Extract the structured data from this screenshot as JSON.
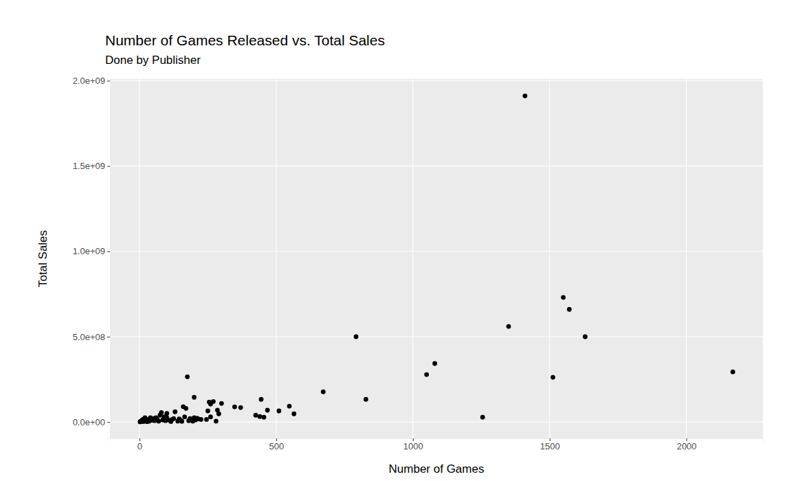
{
  "chart_data": {
    "type": "scatter",
    "title": "Number of Games Released vs. Total Sales",
    "subtitle": "Done by Publisher",
    "x_label": "Number of Games",
    "y_label": "Total Sales",
    "color": "#000000",
    "marker": "circle",
    "grid": true,
    "xlim": [
      -108,
      2280
    ],
    "ylim": [
      -96000000,
      2010000000
    ],
    "xticks": [
      0,
      500,
      1000,
      1500,
      2000
    ],
    "yticks": [
      {
        "value": 0,
        "label": "0.0e+00"
      },
      {
        "value": 500000000,
        "label": "5.0e+08"
      },
      {
        "value": 1000000000,
        "label": "1.0e+09"
      },
      {
        "value": 1500000000,
        "label": "1.5e+09"
      },
      {
        "value": 2000000000,
        "label": "2.0e+09"
      }
    ],
    "x": [
      1410,
      1550,
      1572,
      1630,
      1350,
      792,
      1080,
      1050,
      1512,
      2170,
      1255,
      828,
      672,
      565,
      548,
      510,
      468,
      445,
      455,
      440,
      425,
      370,
      348,
      300,
      290,
      285,
      280,
      270,
      255,
      260,
      250,
      260,
      245,
      200,
      175,
      160,
      170,
      165,
      130,
      100,
      80,
      200,
      210,
      190,
      150,
      120,
      100,
      90,
      75,
      60,
      50,
      40,
      30,
      20,
      10,
      5,
      2,
      15,
      25,
      35,
      45,
      55,
      65,
      70,
      85,
      95,
      110,
      115,
      125,
      140,
      145,
      155,
      180,
      185,
      195,
      205,
      215,
      225,
      3,
      8,
      12,
      18,
      28,
      33
    ],
    "values": [
      1911000000,
      730000000,
      660000000,
      500000000,
      560000000,
      500000000,
      343000000,
      278000000,
      262000000,
      294000000,
      28000000,
      133000000,
      177000000,
      48000000,
      93000000,
      65000000,
      69000000,
      133000000,
      28000000,
      32000000,
      40000000,
      85000000,
      89000000,
      109000000,
      48000000,
      70000000,
      5000000,
      120000000,
      117000000,
      105000000,
      65000000,
      30000000,
      15000000,
      145000000,
      265000000,
      90000000,
      80000000,
      30000000,
      60000000,
      50000000,
      55000000,
      25000000,
      22000000,
      15000000,
      10000000,
      15000000,
      25000000,
      30000000,
      40000000,
      25000000,
      20000000,
      25000000,
      15000000,
      25000000,
      10000000,
      5000000,
      1000000,
      3000000,
      8000000,
      5000000,
      10000000,
      8000000,
      15000000,
      5000000,
      12000000,
      8000000,
      10000000,
      3000000,
      20000000,
      5000000,
      18000000,
      4000000,
      8000000,
      20000000,
      5000000,
      12000000,
      18000000,
      15000000,
      2000000,
      3000000,
      15000000,
      6000000,
      2000000,
      12000000
    ]
  }
}
